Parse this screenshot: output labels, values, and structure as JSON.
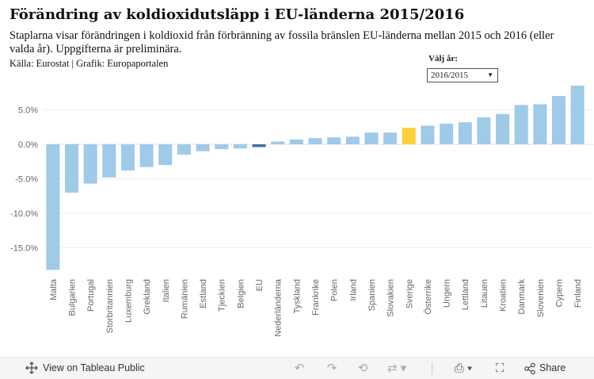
{
  "header": {
    "title": "Förändring av koldioxidutsläpp i EU-länderna 2015/2016",
    "subtitle": "Staplarna visar förändringen i koldioxid från förbränning av fossila bränslen EU-länderna mellan 2015 och 2016 (eller valda år). Uppgifterna är preliminära.",
    "source": "Källa: Eurostat | Grafik: Europaportalen"
  },
  "filter": {
    "label": "Välj år:",
    "selected": "2016/2015"
  },
  "colors": {
    "bar": "#9fcae8",
    "eu": "#4470a0",
    "sweden": "#fbd03c",
    "grid": "#efefef",
    "zero": "#c8c8c8"
  },
  "chart_data": {
    "type": "bar",
    "title": "Förändring av koldioxidutsläpp i EU-länderna 2015/2016",
    "xlabel": "",
    "ylabel": "",
    "ylim": [
      -19.5,
      8.8
    ],
    "yticks": [
      5,
      0,
      -5,
      -10,
      -15
    ],
    "ytick_labels": [
      "5.0%",
      "0.0%",
      "-5.0%",
      "-10.0%",
      "-15.0%"
    ],
    "categories": [
      "Malta",
      "Bulgarien",
      "Portugal",
      "Storbritannien",
      "Luxemburg",
      "Grekland",
      "Italien",
      "Rumänien",
      "Estland",
      "Tjeckien",
      "Belgien",
      "EU",
      "Nederländerna",
      "Tyskland",
      "Frankrike",
      "Polen",
      "Irland",
      "Spanien",
      "Slovakien",
      "Sverige",
      "Österrike",
      "Ungern",
      "Lettland",
      "Litauen",
      "Kroatien",
      "Danmark",
      "Slovenien",
      "Cypern",
      "Finland"
    ],
    "values": [
      -18.2,
      -7.0,
      -5.7,
      -4.8,
      -3.8,
      -3.3,
      -3.0,
      -1.5,
      -1.0,
      -0.7,
      -0.6,
      -0.4,
      0.4,
      0.7,
      0.9,
      1.0,
      1.1,
      1.7,
      1.7,
      2.4,
      2.7,
      3.0,
      3.2,
      3.9,
      4.4,
      5.7,
      5.8,
      7.0,
      8.5
    ],
    "highlight": {
      "EU": "eu",
      "Sverige": "sweden"
    }
  },
  "footer": {
    "tableau_link": "View on Tableau Public",
    "share_label": "Share",
    "icons": [
      "move-icon",
      "undo-icon",
      "redo-icon",
      "revert-icon",
      "refresh-icon",
      "download-icon",
      "fullscreen-icon",
      "share-icon"
    ]
  }
}
